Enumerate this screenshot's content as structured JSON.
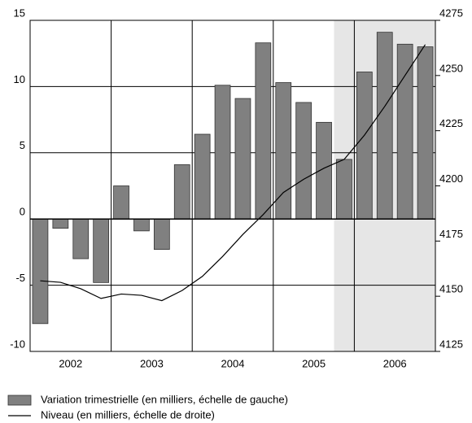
{
  "chart_data": {
    "type": "bar_line",
    "x": [
      2002.125,
      2002.375,
      2002.625,
      2002.875,
      2003.125,
      2003.375,
      2003.625,
      2003.875,
      2004.125,
      2004.375,
      2004.625,
      2004.875,
      2005.125,
      2005.375,
      2005.625,
      2005.875,
      2006.125,
      2006.375,
      2006.625,
      2006.875
    ],
    "xlim": [
      2002,
      2007
    ],
    "xticks": [
      {
        "value": 2002.5,
        "label": "2002"
      },
      {
        "value": 2003.5,
        "label": "2003"
      },
      {
        "value": 2004.5,
        "label": "2004"
      },
      {
        "value": 2005.5,
        "label": "2005"
      },
      {
        "value": 2006.5,
        "label": "2006"
      }
    ],
    "ylim": [
      -10,
      15
    ],
    "yticks": [
      -10,
      -5,
      0,
      5,
      10,
      15
    ],
    "y2lim": [
      4125,
      4275
    ],
    "y2ticks": [
      4125,
      4150,
      4175,
      4200,
      4225,
      4250,
      4275
    ],
    "grid": true,
    "shade": [
      2005.75,
      2007
    ],
    "shade_color": "#e6e6e6",
    "series": [
      {
        "name": "Variation trimestrielle (en milliers, échelle de gauche)",
        "type": "bar",
        "color": "#808080",
        "values": [
          -7.9,
          -0.7,
          -3.0,
          -4.8,
          2.5,
          -0.9,
          -2.3,
          4.1,
          6.4,
          10.1,
          9.1,
          13.3,
          10.3,
          8.8,
          7.3,
          4.5,
          11.1,
          14.1,
          13.2,
          13.0
        ]
      },
      {
        "name": "Niveau (en milliers, échelle de droite)",
        "type": "line",
        "axis": "y2",
        "color": "#000000",
        "values": [
          4157,
          4156.3,
          4153.4,
          4149,
          4151,
          4150.4,
          4148,
          4152.6,
          4159,
          4168,
          4178,
          4187,
          4197,
          4203,
          4208,
          4212,
          4223,
          4236,
          4250,
          4264
        ]
      }
    ]
  }
}
